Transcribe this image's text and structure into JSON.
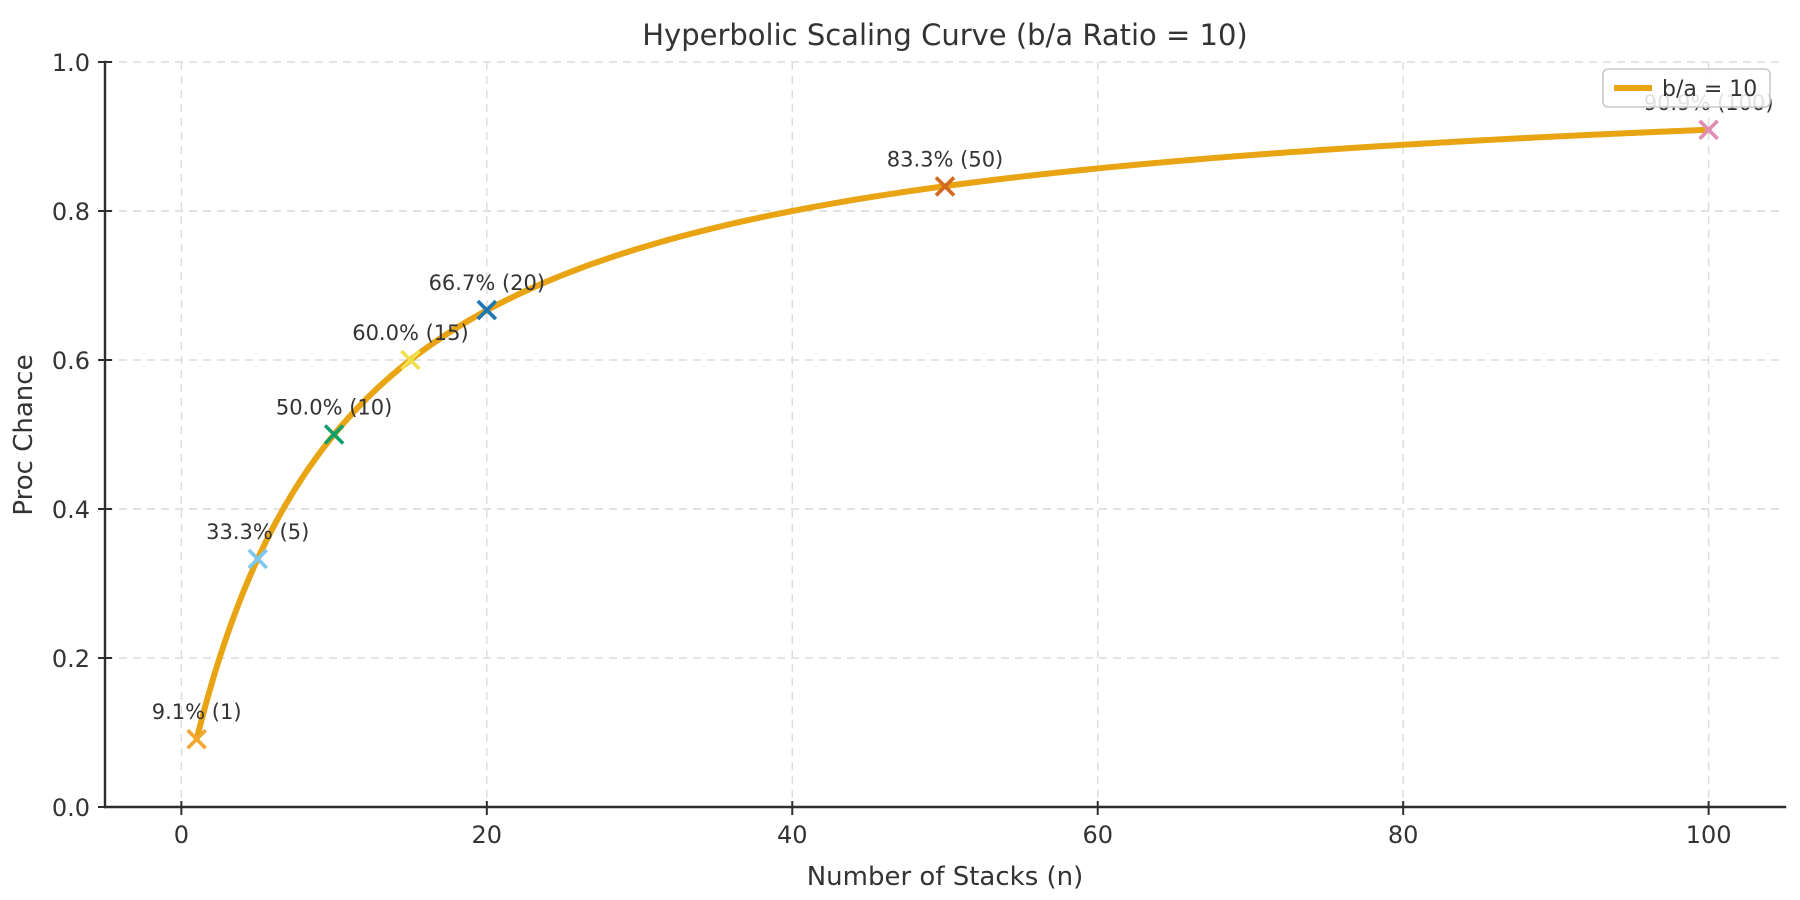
{
  "figure": {
    "title": "Hyperbolic Scaling Curve (b/a Ratio = 10)",
    "background_color": "#ffffff",
    "text_color": "#333333",
    "axis_color": "#2e2e2e",
    "grid_color": "#dcdcdc"
  },
  "chart_data": {
    "type": "line",
    "title": "Hyperbolic Scaling Curve (b/a Ratio = 10)",
    "xlabel": "Number of Stacks (n)",
    "ylabel": "Proc Chance",
    "xlim": [
      -5,
      105
    ],
    "ylim": [
      0,
      1.0
    ],
    "x_ticks": [
      {
        "value": 0,
        "label": "0"
      },
      {
        "value": 20,
        "label": "20"
      },
      {
        "value": 40,
        "label": "40"
      },
      {
        "value": 60,
        "label": "60"
      },
      {
        "value": 80,
        "label": "80"
      },
      {
        "value": 100,
        "label": "100"
      }
    ],
    "y_ticks": [
      {
        "value": 0.0,
        "label": "0.0"
      },
      {
        "value": 0.2,
        "label": "0.2"
      },
      {
        "value": 0.4,
        "label": "0.4"
      },
      {
        "value": 0.6,
        "label": "0.6"
      },
      {
        "value": 0.8,
        "label": "0.8"
      },
      {
        "value": 1.0,
        "label": "1.0"
      }
    ],
    "grid": {
      "show": true,
      "style": "dashed"
    },
    "legend": {
      "position": "upper right",
      "entries": [
        {
          "label": "b/a = 10",
          "color": "#E8A412"
        }
      ]
    },
    "series": [
      {
        "name": "b/a = 10",
        "color": "#E8A412",
        "line_width": 6,
        "formula": "proc_chance = n / (n + ratio)",
        "ratio": 10,
        "x_range": [
          1,
          100
        ]
      }
    ],
    "points": [
      {
        "x": 1,
        "y": 0.091,
        "label": "9.1% (1)",
        "marker": "x",
        "color": "#F2A72E"
      },
      {
        "x": 5,
        "y": 0.333,
        "label": "33.3% (5)",
        "marker": "x",
        "color": "#7EC8F0"
      },
      {
        "x": 10,
        "y": 0.5,
        "label": "50.0% (10)",
        "marker": "x",
        "color": "#0FA069"
      },
      {
        "x": 15,
        "y": 0.6,
        "label": "60.0% (15)",
        "marker": "x",
        "color": "#F0E04E"
      },
      {
        "x": 20,
        "y": 0.667,
        "label": "66.7% (20)",
        "marker": "x",
        "color": "#1F77B4"
      },
      {
        "x": 50,
        "y": 0.833,
        "label": "83.3% (50)",
        "marker": "x",
        "color": "#D2691E"
      },
      {
        "x": 100,
        "y": 0.909,
        "label": "90.9% (100)",
        "marker": "x",
        "color": "#E08DB2"
      }
    ]
  }
}
